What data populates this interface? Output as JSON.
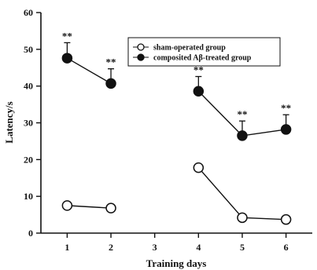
{
  "chart_data": {
    "type": "line",
    "xlabel": "Training days",
    "ylabel": "Latency/s",
    "xlim": [
      0.4,
      6.6
    ],
    "ylim": [
      0,
      60
    ],
    "x_ticks": [
      "1",
      "2",
      "3",
      "4",
      "5",
      "6"
    ],
    "y_ticks": [
      "0",
      "10",
      "20",
      "30",
      "40",
      "50",
      "60"
    ],
    "legend_position": "top-right",
    "series": [
      {
        "name": "sham-operated group",
        "marker": "open-circle",
        "segments": [
          [
            {
              "x": 1,
              "y": 7.5
            },
            {
              "x": 2,
              "y": 6.8
            }
          ],
          [
            {
              "x": 4,
              "y": 17.8
            },
            {
              "x": 5,
              "y": 4.2
            },
            {
              "x": 6,
              "y": 3.7
            }
          ]
        ]
      },
      {
        "name": "composited Aβ-treated group",
        "marker": "filled-circle",
        "segments": [
          [
            {
              "x": 1,
              "y": 47.6,
              "err": 4.2,
              "sig": "**"
            },
            {
              "x": 2,
              "y": 40.7,
              "err": 4.0,
              "sig": "**"
            }
          ],
          [
            {
              "x": 4,
              "y": 38.6,
              "err": 4.0,
              "sig": "**"
            },
            {
              "x": 5,
              "y": 26.5,
              "err": 4.0,
              "sig": "**"
            },
            {
              "x": 6,
              "y": 28.2,
              "err": 4.0,
              "sig": "**"
            }
          ]
        ]
      }
    ]
  },
  "colors": {
    "ink": "#111111",
    "background": "#ffffff"
  }
}
